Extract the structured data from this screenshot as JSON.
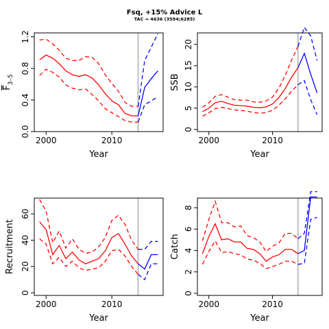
{
  "title": "Fsq, +15% Advice L",
  "subtitle": "TAC = 4636 (3594;6285)",
  "colors": {
    "historic": "#ff0000",
    "forecast": "#0000ff",
    "marker": "#bebebe"
  },
  "chart_data": [
    {
      "type": "line",
      "ylabel_main": "F",
      "ylabel_sub": "3–5",
      "xlabel": "Year",
      "xlim": [
        1998.2,
        2017.8
      ],
      "ylim": [
        0,
        1.25
      ],
      "xticks": [
        2000,
        2010
      ],
      "yticks": [
        0,
        0.4,
        0.8,
        1.2
      ],
      "ytick_labels": [
        "0.0",
        "0.4",
        "0.8",
        "1.2"
      ],
      "vline": 2014,
      "series": [
        {
          "role": "median",
          "kind": "historic",
          "x": [
            1999,
            2000,
            2001,
            2002,
            2003,
            2004,
            2005,
            2006,
            2007,
            2008,
            2009,
            2010,
            2011,
            2012,
            2013,
            2014
          ],
          "y": [
            0.91,
            0.97,
            0.93,
            0.86,
            0.77,
            0.72,
            0.7,
            0.72,
            0.68,
            0.59,
            0.48,
            0.39,
            0.34,
            0.23,
            0.2,
            0.2
          ]
        },
        {
          "role": "upper",
          "kind": "historic",
          "x": [
            1999,
            2000,
            2001,
            2002,
            2003,
            2004,
            2005,
            2006,
            2007,
            2008,
            2009,
            2010,
            2011,
            2012,
            2013,
            2014
          ],
          "y": [
            1.16,
            1.17,
            1.11,
            1.03,
            0.93,
            0.9,
            0.9,
            0.95,
            0.94,
            0.86,
            0.72,
            0.61,
            0.51,
            0.37,
            0.32,
            0.32
          ]
        },
        {
          "role": "lower",
          "kind": "historic",
          "x": [
            1999,
            2000,
            2001,
            2002,
            2003,
            2004,
            2005,
            2006,
            2007,
            2008,
            2009,
            2010,
            2011,
            2012,
            2013,
            2014
          ],
          "y": [
            0.71,
            0.79,
            0.75,
            0.69,
            0.59,
            0.55,
            0.53,
            0.54,
            0.47,
            0.39,
            0.29,
            0.24,
            0.19,
            0.14,
            0.12,
            0.12
          ]
        },
        {
          "role": "median",
          "kind": "forecast",
          "x": [
            2014,
            2015,
            2016,
            2017
          ],
          "y": [
            0.2,
            0.56,
            0.67,
            0.77
          ]
        },
        {
          "role": "upper",
          "kind": "forecast",
          "x": [
            2014,
            2015,
            2016,
            2017
          ],
          "y": [
            0.32,
            0.9,
            1.07,
            1.24
          ]
        },
        {
          "role": "lower",
          "kind": "forecast",
          "x": [
            2014,
            2015,
            2016,
            2017
          ],
          "y": [
            0.12,
            0.34,
            0.39,
            0.44
          ]
        }
      ]
    },
    {
      "type": "line",
      "ylabel_main": "SSB",
      "xlabel": "Year",
      "xlim": [
        1998.2,
        2017.8
      ],
      "ylim": [
        -0.5,
        22.7
      ],
      "xticks": [
        2000,
        2010
      ],
      "yticks": [
        0,
        5,
        10,
        15,
        20
      ],
      "ytick_labels": [
        "0",
        "5",
        "10",
        "15",
        "20"
      ],
      "vline": 2014,
      "series": [
        {
          "role": "median",
          "kind": "historic",
          "x": [
            1999,
            2000,
            2001,
            2002,
            2003,
            2004,
            2005,
            2006,
            2007,
            2008,
            2009,
            2010,
            2011,
            2012,
            2013,
            2014
          ],
          "y": [
            4.2,
            5.0,
            6.3,
            6.6,
            6.1,
            5.7,
            5.6,
            5.5,
            5.2,
            5.1,
            5.3,
            6.0,
            7.5,
            9.6,
            12.3,
            14.5
          ]
        },
        {
          "role": "upper",
          "kind": "historic",
          "x": [
            1999,
            2000,
            2001,
            2002,
            2003,
            2004,
            2005,
            2006,
            2007,
            2008,
            2009,
            2010,
            2011,
            2012,
            2013,
            2014
          ],
          "y": [
            5.2,
            6.3,
            7.8,
            8.2,
            7.6,
            7.0,
            6.9,
            6.9,
            6.5,
            6.4,
            6.7,
            7.6,
            9.7,
            12.7,
            16.3,
            19.5
          ]
        },
        {
          "role": "lower",
          "kind": "historic",
          "x": [
            1999,
            2000,
            2001,
            2002,
            2003,
            2004,
            2005,
            2006,
            2007,
            2008,
            2009,
            2010,
            2011,
            2012,
            2013,
            2014
          ],
          "y": [
            3.1,
            3.9,
            4.9,
            5.2,
            4.9,
            4.6,
            4.5,
            4.3,
            4.0,
            3.8,
            4.0,
            4.5,
            5.7,
            7.2,
            9.0,
            10.5
          ]
        },
        {
          "role": "median",
          "kind": "forecast",
          "x": [
            2014,
            2015,
            2016,
            2017
          ],
          "y": [
            14.5,
            17.9,
            13.0,
            8.6
          ]
        },
        {
          "role": "upper",
          "kind": "forecast",
          "x": [
            2014,
            2015,
            2016,
            2017
          ],
          "y": [
            19.5,
            24.0,
            22.0,
            16.2
          ]
        },
        {
          "role": "lower",
          "kind": "forecast",
          "x": [
            2014,
            2015,
            2016,
            2017
          ],
          "y": [
            10.5,
            11.5,
            7.0,
            3.5
          ]
        }
      ]
    },
    {
      "type": "line",
      "ylabel_main": "Recruitment",
      "xlabel": "Year",
      "xlim": [
        1998.2,
        2017.8
      ],
      "ylim": [
        -2,
        72
      ],
      "xticks": [
        2000,
        2010
      ],
      "yticks": [
        0,
        20,
        40,
        60
      ],
      "ytick_labels": [
        "0",
        "20",
        "40",
        "60"
      ],
      "vline": 2014,
      "series": [
        {
          "role": "median",
          "kind": "historic",
          "x": [
            1999,
            2000,
            2001,
            2002,
            2003,
            2004,
            2005,
            2006,
            2007,
            2008,
            2009,
            2010,
            2011,
            2012,
            2013,
            2014
          ],
          "y": [
            54,
            48,
            29,
            36,
            26,
            31,
            25,
            22,
            24,
            26,
            32,
            42,
            45,
            37,
            28,
            22
          ]
        },
        {
          "role": "upper",
          "kind": "historic",
          "x": [
            1999,
            2000,
            2001,
            2002,
            2003,
            2004,
            2005,
            2006,
            2007,
            2008,
            2009,
            2010,
            2011,
            2012,
            2013,
            2014
          ],
          "y": [
            71,
            62,
            38,
            47,
            34,
            41,
            33,
            30,
            31,
            35,
            42,
            55,
            59,
            52,
            40,
            33
          ]
        },
        {
          "role": "lower",
          "kind": "historic",
          "x": [
            1999,
            2000,
            2001,
            2002,
            2003,
            2004,
            2005,
            2006,
            2007,
            2008,
            2009,
            2010,
            2011,
            2012,
            2013,
            2014
          ],
          "y": [
            41,
            37,
            22,
            27,
            20,
            24,
            19,
            17,
            18,
            19,
            24,
            32,
            33,
            28,
            20,
            14
          ]
        },
        {
          "role": "median",
          "kind": "forecast",
          "x": [
            2014,
            2015,
            2016,
            2017
          ],
          "y": [
            22,
            18,
            29,
            29
          ]
        },
        {
          "role": "upper",
          "kind": "forecast",
          "x": [
            2014,
            2015,
            2016,
            2017
          ],
          "y": [
            33,
            33,
            39,
            39
          ]
        },
        {
          "role": "lower",
          "kind": "forecast",
          "x": [
            2014,
            2015,
            2016,
            2017
          ],
          "y": [
            14,
            10,
            22,
            22
          ]
        }
      ]
    },
    {
      "type": "line",
      "ylabel_main": "Catch",
      "xlabel": "Year",
      "xlim": [
        1998.2,
        2017.8
      ],
      "ylim": [
        -0.2,
        8.9
      ],
      "xticks": [
        2000,
        2010
      ],
      "yticks": [
        0,
        2,
        4,
        6,
        8
      ],
      "ytick_labels": [
        "0",
        "2",
        "4",
        "6",
        "8"
      ],
      "vline": 2014,
      "series": [
        {
          "role": "median",
          "kind": "historic",
          "x": [
            1999,
            2000,
            2001,
            2002,
            2003,
            2004,
            2005,
            2006,
            2007,
            2008,
            2009,
            2010,
            2011,
            2012,
            2013,
            2014
          ],
          "y": [
            3.7,
            5.3,
            6.5,
            5.0,
            5.1,
            4.8,
            4.8,
            4.2,
            4.1,
            3.7,
            3.0,
            3.4,
            3.6,
            4.1,
            4.1,
            3.7
          ]
        },
        {
          "role": "upper",
          "kind": "historic",
          "x": [
            1999,
            2000,
            2001,
            2002,
            2003,
            2004,
            2005,
            2006,
            2007,
            2008,
            2009,
            2010,
            2011,
            2012,
            2013,
            2014
          ],
          "y": [
            4.9,
            6.9,
            8.6,
            6.6,
            6.6,
            6.2,
            6.3,
            5.4,
            5.2,
            4.8,
            3.9,
            4.4,
            4.7,
            5.6,
            5.6,
            5.1
          ]
        },
        {
          "role": "lower",
          "kind": "historic",
          "x": [
            1999,
            2000,
            2001,
            2002,
            2003,
            2004,
            2005,
            2006,
            2007,
            2008,
            2009,
            2010,
            2011,
            2012,
            2013,
            2014
          ],
          "y": [
            2.7,
            3.9,
            4.9,
            3.8,
            3.9,
            3.7,
            3.6,
            3.2,
            3.1,
            2.8,
            2.3,
            2.5,
            2.7,
            3.0,
            3.0,
            2.7
          ]
        },
        {
          "role": "median",
          "kind": "forecast",
          "x": [
            2014,
            2015,
            2016,
            2017
          ],
          "y": [
            3.7,
            4.0,
            9.0,
            9.0
          ]
        },
        {
          "role": "upper",
          "kind": "forecast",
          "x": [
            2014,
            2015,
            2016,
            2017
          ],
          "y": [
            5.1,
            5.6,
            9.5,
            9.5
          ]
        },
        {
          "role": "lower",
          "kind": "forecast",
          "x": [
            2014,
            2015,
            2016,
            2017
          ],
          "y": [
            2.7,
            2.8,
            6.9,
            7.1
          ]
        }
      ]
    }
  ]
}
